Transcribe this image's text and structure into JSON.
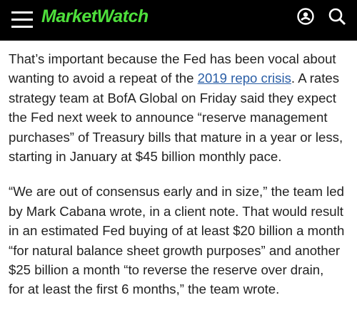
{
  "header": {
    "logo": "MarketWatch"
  },
  "article": {
    "paragraphs": [
      {
        "lines": [
          "That’s important because the Fed has been vocal about",
          {
            "before": "wanting to avoid a repeat of the ",
            "link": "2019 repo crisis",
            "after": ". A rates"
          },
          "strategy team at BofA Global on Friday said they expect",
          "the Fed next week to announce “reserve management",
          "purchases” of Treasury bills that mature in a year or less,",
          "starting in January at $45 billion monthly pace."
        ]
      },
      {
        "lines": [
          "“We are out of consensus early and in size,” the team led",
          "by Mark Cabana wrote, in a client note. That would result",
          "in an estimated Fed buying of at least $20 billion a month",
          "“for natural balance sheet growth purposes” and another",
          "$25 billion a month “to reverse the reserve over drain,",
          "for at least the first 6 months,” the team wrote."
        ]
      }
    ]
  }
}
